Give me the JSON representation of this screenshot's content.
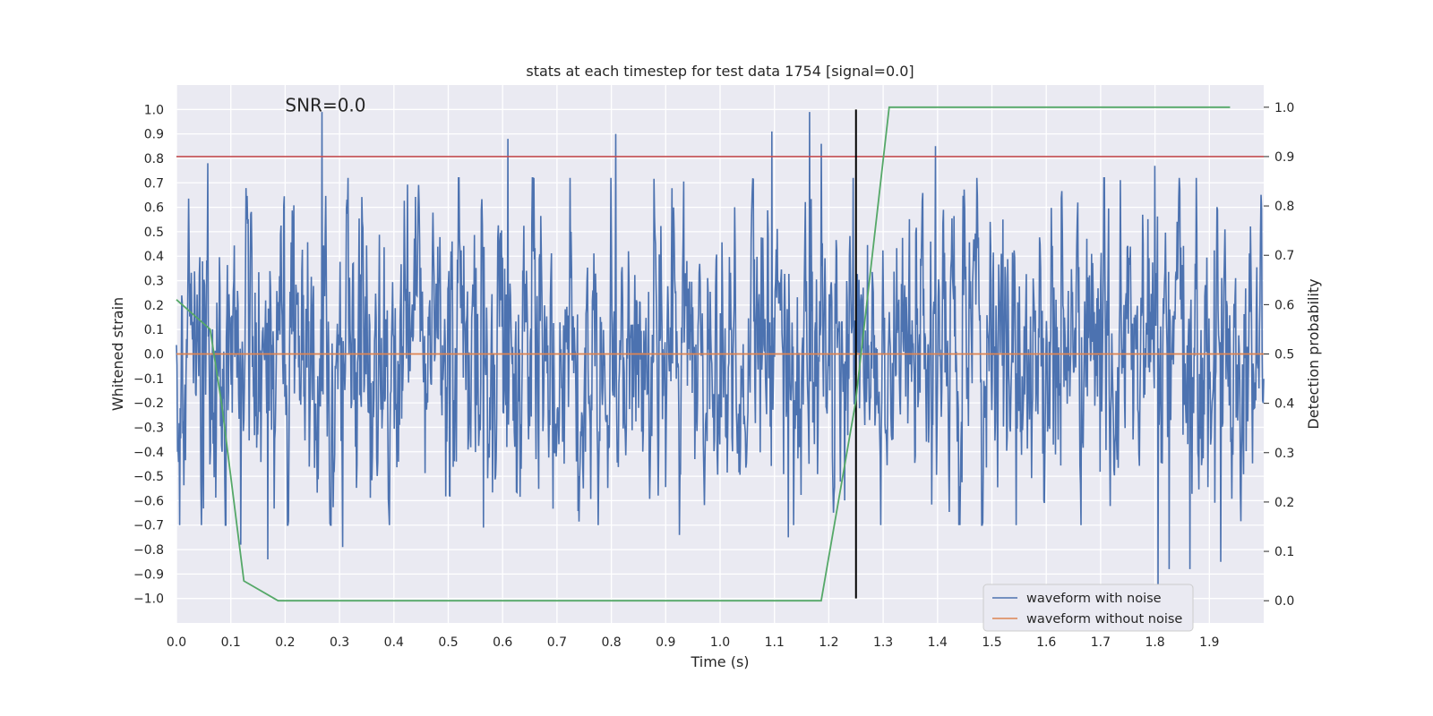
{
  "chart_data": {
    "type": "line",
    "title": "stats at each timestep for test data 1754 [signal=0.0]",
    "xlabel": "Time (s)",
    "ylabel": "Whitened strain",
    "ylabel_right": "Detection probability",
    "xlim": [
      0.0,
      2.0
    ],
    "ylim": [
      -1.1,
      1.1
    ],
    "ylim_right": [
      -0.045,
      1.045
    ],
    "x_ticks": [
      0.0,
      0.1,
      0.2,
      0.3,
      0.4,
      0.5,
      0.6,
      0.7,
      0.8,
      0.9,
      1.0,
      1.1,
      1.2,
      1.3,
      1.4,
      1.5,
      1.6,
      1.7,
      1.8,
      1.9
    ],
    "x_tick_labels": [
      "0.0",
      "0.1",
      "0.2",
      "0.3",
      "0.4",
      "0.5",
      "0.6",
      "0.7",
      "0.8",
      "0.9",
      "1.0",
      "1.1",
      "1.2",
      "1.3",
      "1.4",
      "1.5",
      "1.6",
      "1.7",
      "1.8",
      "1.9"
    ],
    "y_ticks": [
      1.0,
      0.9,
      0.8,
      0.7,
      0.6,
      0.5,
      0.4,
      0.3,
      0.2,
      0.1,
      0.0,
      -0.1,
      -0.2,
      -0.3,
      -0.4,
      -0.5,
      -0.6,
      -0.7,
      -0.8,
      -0.9,
      -1.0
    ],
    "y_tick_labels": [
      "1.0",
      "0.9",
      "0.8",
      "0.7",
      "0.6",
      "0.5",
      "0.4",
      "0.3",
      "0.2",
      "0.1",
      "0.0",
      "−0.1",
      "−0.2",
      "−0.3",
      "−0.4",
      "−0.5",
      "−0.6",
      "−0.7",
      "−0.8",
      "−0.9",
      "−1.0"
    ],
    "y_ticks_right": [
      1.0,
      0.9,
      0.8,
      0.7,
      0.6,
      0.5,
      0.4,
      0.3,
      0.2,
      0.1,
      0.0
    ],
    "y_tick_labels_right": [
      "1.0",
      "0.9",
      "0.8",
      "0.7",
      "0.6",
      "0.5",
      "0.4",
      "0.3",
      "0.2",
      "0.1",
      "0.0"
    ],
    "grid": true,
    "legend_placement": "lower-right",
    "annotation": "SNR=0.0",
    "annotation_pos": [
      0.2,
      1.0
    ],
    "noisy_waveform": {
      "name": "waveform with noise",
      "color": "#4c72b0",
      "x_range": [
        0.0,
        2.0
      ],
      "approx_amplitude_range": [
        -0.97,
        0.99
      ],
      "peaks": [
        {
          "x": 0.058,
          "y": 0.78
        },
        {
          "x": 0.268,
          "y": 0.99
        },
        {
          "x": 0.61,
          "y": 0.88
        },
        {
          "x": 0.808,
          "y": 0.9
        },
        {
          "x": 1.095,
          "y": 0.91
        },
        {
          "x": 1.165,
          "y": 0.99
        },
        {
          "x": 1.396,
          "y": 0.85
        },
        {
          "x": 1.8,
          "y": 0.77
        },
        {
          "x": 1.186,
          "y": 0.86
        }
      ],
      "troughs": [
        {
          "x": 0.118,
          "y": -0.78
        },
        {
          "x": 0.168,
          "y": -0.84
        },
        {
          "x": 0.306,
          "y": -0.79
        },
        {
          "x": 0.565,
          "y": -0.71
        },
        {
          "x": 0.925,
          "y": -0.74
        },
        {
          "x": 1.126,
          "y": -0.75
        },
        {
          "x": 1.806,
          "y": -0.97
        },
        {
          "x": 1.826,
          "y": -0.88
        },
        {
          "x": 1.864,
          "y": -0.88
        },
        {
          "x": 1.921,
          "y": -0.85
        }
      ]
    },
    "clean_waveform": {
      "name": "waveform without noise",
      "color": "#dd8452",
      "y": 0.0
    },
    "detection_probability": {
      "color": "#55a868",
      "x": [
        0.0,
        0.062,
        0.083,
        0.124,
        0.187,
        0.249,
        0.311,
        0.373,
        0.435,
        0.497,
        0.559,
        0.621,
        0.684,
        0.746,
        0.808,
        0.87,
        0.932,
        0.994,
        1.056,
        1.118,
        1.186,
        1.249,
        1.311,
        1.373,
        1.435,
        1.497,
        1.559,
        1.621,
        1.684,
        1.746,
        1.808,
        1.87,
        1.938
      ],
      "y": [
        0.61,
        0.55,
        0.4,
        0.04,
        0.0,
        0.0,
        0.0,
        0.0,
        0.0,
        0.0,
        0.0,
        0.0,
        0.0,
        0.0,
        0.0,
        0.0,
        0.0,
        0.0,
        0.0,
        0.0,
        0.0,
        0.4,
        1.0,
        1.0,
        1.0,
        1.0,
        1.0,
        1.0,
        1.0,
        1.0,
        1.0,
        1.0,
        1.0
      ]
    },
    "threshold_line": {
      "color": "#c44e52",
      "y_right": 0.9
    },
    "marker_line": {
      "color": "#000000",
      "x": 1.25,
      "y_range": [
        -1.0,
        1.0
      ]
    }
  }
}
